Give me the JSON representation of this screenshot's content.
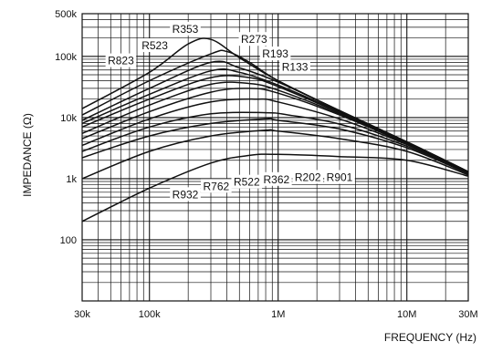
{
  "chart_data": {
    "type": "line",
    "xlabel": "FREQUENCY (Hz)",
    "ylabel": "IMPEDANCE (Ω)",
    "xscale": "log",
    "yscale": "log",
    "xlim": [
      30000,
      30000000
    ],
    "ylim": [
      10,
      500000
    ],
    "grid": true,
    "legend": "none",
    "x_ticks": [
      {
        "value": 30000,
        "label": "30k"
      },
      {
        "value": 100000,
        "label": "100k"
      },
      {
        "value": 1000000,
        "label": "1M"
      },
      {
        "value": 10000000,
        "label": "10M"
      },
      {
        "value": 30000000,
        "label": "30M"
      }
    ],
    "y_ticks": [
      {
        "value": 100,
        "label": "100"
      },
      {
        "value": 1000,
        "label": "1k"
      },
      {
        "value": 10000,
        "label": "10k"
      },
      {
        "value": 100000,
        "label": "100k"
      },
      {
        "value": 500000,
        "label": "500k"
      }
    ],
    "series": [
      {
        "name": "R353",
        "x": [
          30000,
          100000,
          200000,
          300000,
          500000,
          1000000,
          3000000,
          10000000,
          30000000
        ],
        "y": [
          14000,
          55000,
          160000,
          190000,
          95000,
          40000,
          13000,
          4000,
          1300
        ]
      },
      {
        "name": "R273",
        "x": [
          30000,
          100000,
          300000,
          400000,
          600000,
          1000000,
          3000000,
          10000000,
          30000000
        ],
        "y": [
          11000,
          40000,
          110000,
          120000,
          80000,
          40000,
          13000,
          4000,
          1300
        ]
      },
      {
        "name": "R523",
        "x": [
          30000,
          100000,
          300000,
          500000,
          1000000,
          3000000,
          10000000,
          30000000
        ],
        "y": [
          9000,
          30000,
          80000,
          65000,
          38000,
          13000,
          4000,
          1300
        ]
      },
      {
        "name": "R193",
        "x": [
          30000,
          100000,
          300000,
          500000,
          1000000,
          3000000,
          10000000,
          30000000
        ],
        "y": [
          8000,
          24000,
          58000,
          55000,
          34000,
          12500,
          3900,
          1300
        ]
      },
      {
        "name": "R823",
        "x": [
          30000,
          100000,
          300000,
          600000,
          1000000,
          3000000,
          10000000,
          30000000
        ],
        "y": [
          7000,
          20000,
          45000,
          45000,
          32000,
          12000,
          3900,
          1300
        ]
      },
      {
        "name": "R133",
        "x": [
          30000,
          100000,
          300000,
          600000,
          1000000,
          3000000,
          10000000,
          30000000
        ],
        "y": [
          5500,
          16000,
          35000,
          36000,
          28000,
          11500,
          3800,
          1300
        ]
      },
      {
        "name": "R932",
        "x": [
          30000,
          100000,
          300000,
          600000,
          1000000,
          3000000,
          10000000,
          30000000
        ],
        "y": [
          4500,
          12500,
          26000,
          30000,
          25000,
          11000,
          3700,
          1300
        ]
      },
      {
        "name": "R762",
        "x": [
          30000,
          100000,
          300000,
          700000,
          1000000,
          3000000,
          10000000,
          30000000
        ],
        "y": [
          3500,
          9500,
          18000,
          20000,
          18000,
          9500,
          3600,
          1250
        ]
      },
      {
        "name": "R522",
        "x": [
          30000,
          100000,
          300000,
          800000,
          1200000,
          3000000,
          10000000,
          30000000
        ],
        "y": [
          2800,
          7000,
          11500,
          12000,
          11000,
          7800,
          3400,
          1250
        ]
      },
      {
        "name": "R362",
        "x": [
          30000,
          100000,
          300000,
          800000,
          1000000,
          3000000,
          10000000,
          30000000
        ],
        "y": [
          2200,
          5000,
          8000,
          9500,
          9000,
          6500,
          3200,
          1200
        ]
      },
      {
        "name": "R202",
        "x": [
          30000,
          100000,
          300000,
          800000,
          1000000,
          3000000,
          10000000,
          30000000
        ],
        "y": [
          1000,
          2800,
          5000,
          6200,
          6000,
          4500,
          2800,
          1150
        ]
      },
      {
        "name": "R901",
        "x": [
          30000,
          100000,
          300000,
          600000,
          1000000,
          3000000,
          10000000,
          30000000
        ],
        "y": [
          200,
          700,
          1800,
          2400,
          2500,
          2300,
          2000,
          1100
        ]
      }
    ],
    "labels": [
      {
        "text": "R353",
        "x": 190000,
        "y": 280000
      },
      {
        "text": "R273",
        "x": 650000,
        "y": 190000
      },
      {
        "text": "R523",
        "x": 110000,
        "y": 150000
      },
      {
        "text": "R193",
        "x": 950000,
        "y": 110000
      },
      {
        "text": "R823",
        "x": 60000,
        "y": 85000
      },
      {
        "text": "R133",
        "x": 1350000,
        "y": 67000
      },
      {
        "text": "R932",
        "x": 190000,
        "y": 550
      },
      {
        "text": "R762",
        "x": 330000,
        "y": 750
      },
      {
        "text": "R522",
        "x": 570000,
        "y": 880
      },
      {
        "text": "R362",
        "x": 970000,
        "y": 970
      },
      {
        "text": "R202",
        "x": 1700000,
        "y": 1050
      },
      {
        "text": "R901",
        "x": 3000000,
        "y": 1050
      }
    ]
  }
}
